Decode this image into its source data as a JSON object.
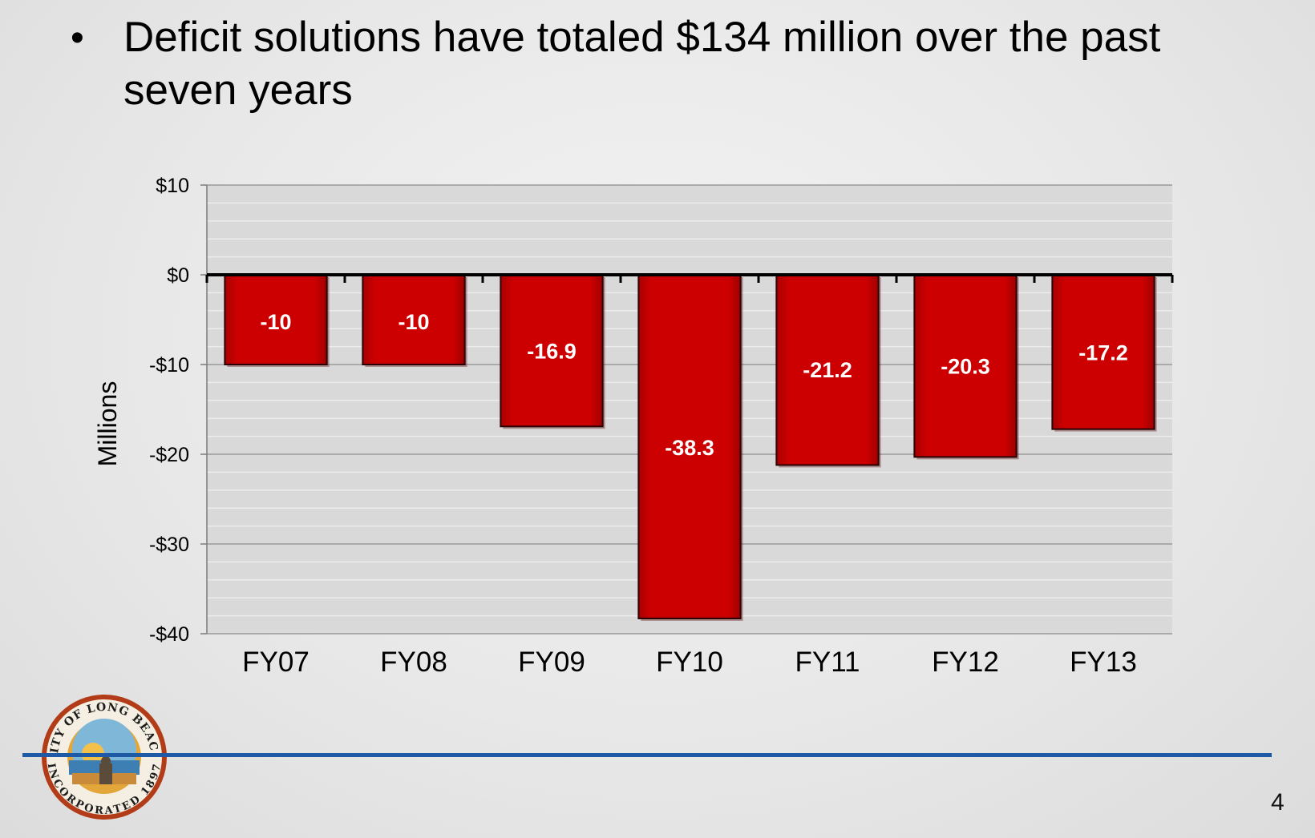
{
  "slide": {
    "bullet_text": "Deficit solutions have totaled $134 million over the past seven years",
    "page_number": "4"
  },
  "logo": {
    "text_top": "CITY OF LONG BEACH",
    "text_bottom": "INCORPORATED 1897"
  },
  "colors": {
    "bar_fill": "#cc0000",
    "plot_bg": "#d9d9d9",
    "footer_rule": "#1f5aa6"
  },
  "chart_data": {
    "type": "bar",
    "title": "",
    "xlabel": "",
    "ylabel": "Millions",
    "categories": [
      "FY07",
      "FY08",
      "FY09",
      "FY10",
      "FY11",
      "FY12",
      "FY13"
    ],
    "values": [
      -10,
      -10,
      -16.9,
      -38.3,
      -21.2,
      -20.3,
      -17.2
    ],
    "data_labels": [
      "-10",
      "-10",
      "-16.9",
      "-38.3",
      "-21.2",
      "-20.3",
      "-17.2"
    ],
    "ylim": [
      -40,
      10
    ],
    "yticks": [
      10,
      0,
      -10,
      -20,
      -30,
      -40
    ],
    "ytick_labels": [
      "$10",
      "$0",
      "-$10",
      "-$20",
      "-$30",
      "-$40"
    ],
    "grid": true,
    "legend": "none"
  }
}
